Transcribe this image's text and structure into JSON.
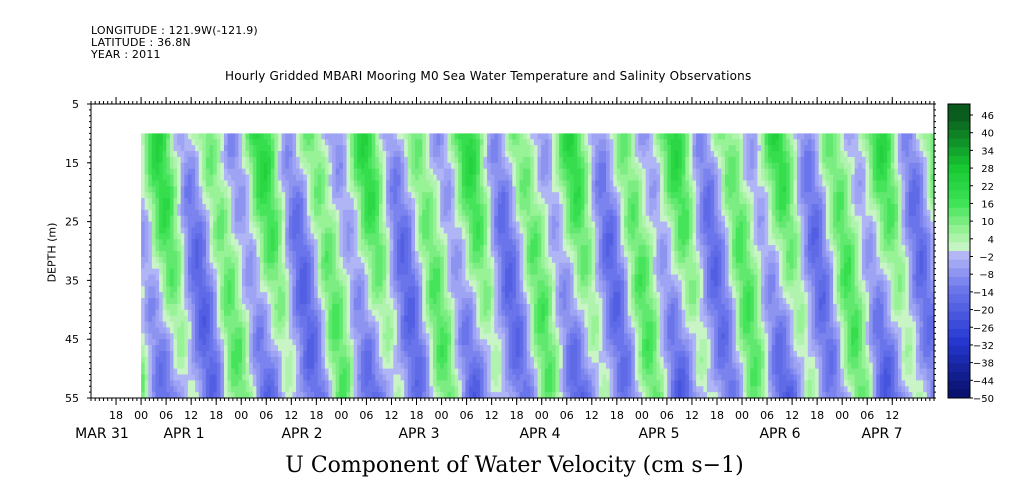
{
  "header": {
    "longitude": "LONGITUDE : 121.9W(-121.9)",
    "latitude": "LATITUDE : 36.8N",
    "year": "YEAR : 2011",
    "title": "Hourly Gridded MBARI Mooring M0 Sea Water Temperature and Salinity Observations"
  },
  "caption": "U Component of Water Velocity (cm s−1)",
  "chart_data": {
    "type": "heatmap",
    "title": "Hourly Gridded MBARI Mooring M0 Sea Water Temperature and Salinity Observations",
    "ylabel": "DEPTH (m)",
    "xlabel": "",
    "variable": "U Component of Water Velocity (cm s−1)",
    "y_ticks": [
      "5",
      "15",
      "25",
      "35",
      "45",
      "55"
    ],
    "ylim": [
      5,
      55
    ],
    "y_inverted": true,
    "data_depth_range": [
      10,
      55
    ],
    "hour_ticks": [
      "18",
      "00",
      "06",
      "12",
      "18",
      "00",
      "06",
      "12",
      "18",
      "00",
      "06",
      "12",
      "18",
      "00",
      "06",
      "12",
      "18",
      "00",
      "06",
      "12",
      "18",
      "00",
      "06",
      "12",
      "18",
      "00",
      "06",
      "12",
      "18",
      "00",
      "06",
      "12"
    ],
    "date_labels": [
      "MAR 31",
      "APR  1",
      "APR  2",
      "APR  3",
      "APR  4",
      "APR  5",
      "APR  6",
      "APR  7"
    ],
    "xlim": [
      "2011-03-30T12:00",
      "2011-04-07T22:00"
    ],
    "data_start": "2011-03-31T00:00",
    "colorbar": {
      "labels": [
        "46",
        "40",
        "34",
        "28",
        "22",
        "16",
        "10",
        "4",
        "−2",
        "−8",
        "−14",
        "−20",
        "−26",
        "−32",
        "−38",
        "−44",
        "−50"
      ],
      "levels_min": -50,
      "levels_max": 50,
      "step": 3
    },
    "colors": {
      "dark_green": "#0b5a1e",
      "mid_green": "#1fd83a",
      "light_green": "#99f299",
      "light_blue": "#b4b8f6",
      "mid_blue": "#5a68e6",
      "dark_blue": "#0a1270"
    },
    "pattern_note": "alternating green (eastward) and blue (westward) bands, roughly twice daily"
  }
}
